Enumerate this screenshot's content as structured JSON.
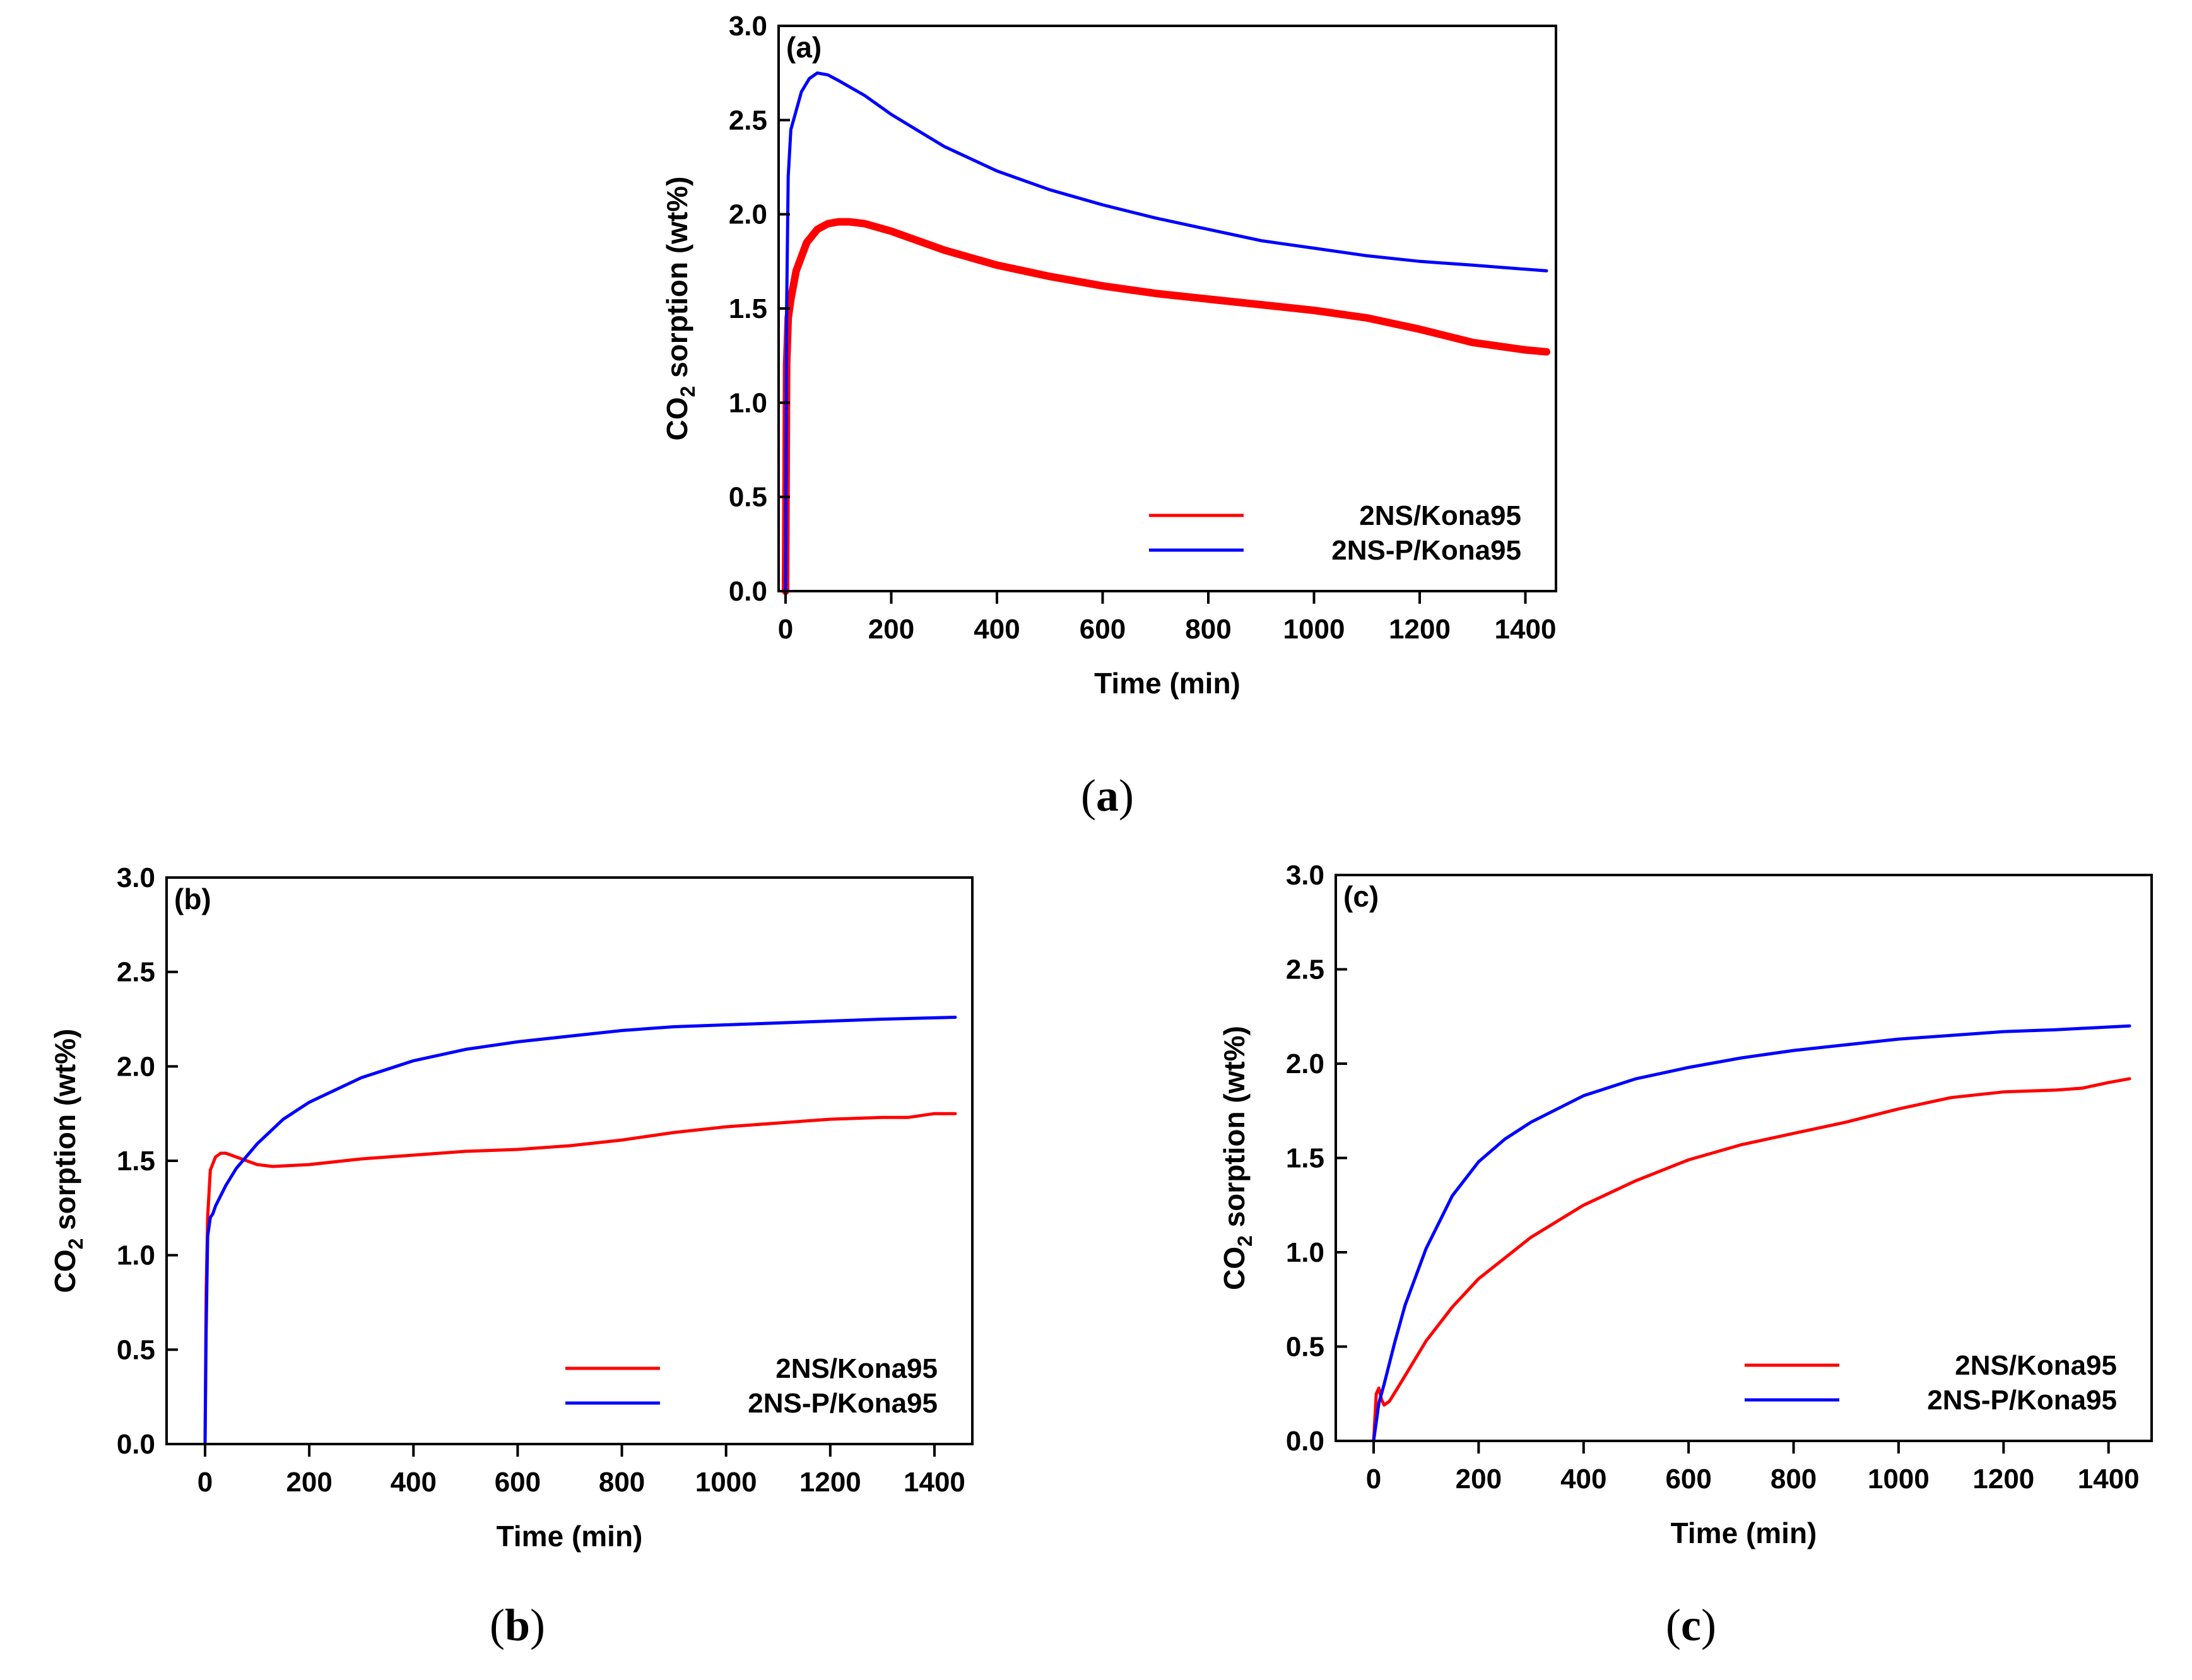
{
  "chart_data": [
    {
      "id": "a",
      "type": "line",
      "panel_tag": "(a)",
      "caption_letter": "a",
      "xlabel": "Time (min)",
      "ylabel_main": "CO",
      "ylabel_sub": "2",
      "ylabel_rest": " sorption (wt%)",
      "xlim": [
        0,
        1440
      ],
      "ylim": [
        0,
        3.0
      ],
      "xticks": [
        "0",
        "200",
        "400",
        "600",
        "800",
        "1000",
        "1200",
        "1400"
      ],
      "yticks": [
        "0.0",
        "0.5",
        "1.0",
        "1.5",
        "2.0",
        "2.5",
        "3.0"
      ],
      "legend_position": "bottom-right",
      "series": [
        {
          "name": "2NS/Kona95",
          "color": "#ff0000",
          "thick": true,
          "x": [
            0,
            2,
            5,
            10,
            20,
            40,
            60,
            80,
            100,
            120,
            150,
            200,
            300,
            400,
            500,
            600,
            700,
            800,
            900,
            1000,
            1100,
            1200,
            1300,
            1400,
            1440
          ],
          "y": [
            0,
            1.2,
            1.45,
            1.55,
            1.7,
            1.85,
            1.92,
            1.95,
            1.96,
            1.96,
            1.95,
            1.91,
            1.81,
            1.73,
            1.67,
            1.62,
            1.58,
            1.55,
            1.52,
            1.49,
            1.45,
            1.39,
            1.32,
            1.28,
            1.27
          ]
        },
        {
          "name": "2NS-P/Kona95",
          "color": "#0000ff",
          "thick": false,
          "x": [
            0,
            2,
            5,
            10,
            20,
            30,
            45,
            60,
            80,
            100,
            150,
            200,
            300,
            400,
            500,
            600,
            700,
            800,
            900,
            1000,
            1100,
            1200,
            1300,
            1440
          ],
          "y": [
            0,
            1.5,
            2.2,
            2.45,
            2.55,
            2.65,
            2.72,
            2.75,
            2.74,
            2.71,
            2.63,
            2.53,
            2.36,
            2.23,
            2.13,
            2.05,
            1.98,
            1.92,
            1.86,
            1.82,
            1.78,
            1.75,
            1.73,
            1.7
          ]
        }
      ]
    },
    {
      "id": "b",
      "type": "line",
      "panel_tag": "(b)",
      "caption_letter": "b",
      "xlabel": "Time (min)",
      "ylabel_main": "CO",
      "ylabel_sub": "2",
      "ylabel_rest": " sorption (wt%)",
      "xlim": [
        0,
        1440
      ],
      "ylim": [
        0,
        3.0
      ],
      "xticks": [
        "0",
        "200",
        "400",
        "600",
        "800",
        "1000",
        "1200",
        "1400"
      ],
      "yticks": [
        "0.0",
        "0.5",
        "1.0",
        "1.5",
        "2.0",
        "2.5",
        "3.0"
      ],
      "legend_position": "bottom-right",
      "series": [
        {
          "name": "2NS/Kona95",
          "color": "#ff0000",
          "thick": false,
          "x": [
            0,
            2,
            5,
            10,
            20,
            30,
            40,
            60,
            80,
            100,
            130,
            200,
            300,
            400,
            500,
            600,
            700,
            800,
            900,
            1000,
            1100,
            1200,
            1300,
            1350,
            1400,
            1440
          ],
          "y": [
            0,
            0.8,
            1.2,
            1.45,
            1.52,
            1.54,
            1.54,
            1.52,
            1.5,
            1.48,
            1.47,
            1.48,
            1.51,
            1.53,
            1.55,
            1.56,
            1.58,
            1.61,
            1.65,
            1.68,
            1.7,
            1.72,
            1.73,
            1.73,
            1.75,
            1.75
          ]
        },
        {
          "name": "2NS-P/Kona95",
          "color": "#0000ff",
          "thick": false,
          "x": [
            0,
            2,
            5,
            10,
            15,
            20,
            40,
            60,
            100,
            150,
            200,
            300,
            400,
            500,
            600,
            700,
            800,
            900,
            1000,
            1100,
            1200,
            1300,
            1440
          ],
          "y": [
            0,
            0.6,
            1.1,
            1.2,
            1.22,
            1.26,
            1.37,
            1.46,
            1.59,
            1.72,
            1.81,
            1.94,
            2.03,
            2.09,
            2.13,
            2.16,
            2.19,
            2.21,
            2.22,
            2.23,
            2.24,
            2.25,
            2.26
          ]
        }
      ]
    },
    {
      "id": "c",
      "type": "line",
      "panel_tag": "(c)",
      "caption_letter": "c",
      "xlabel": "Time (min)",
      "ylabel_main": "CO",
      "ylabel_sub": "2",
      "ylabel_rest": " sorption (wt%)",
      "xlim": [
        0,
        1440
      ],
      "ylim": [
        0,
        3.0
      ],
      "xticks": [
        "0",
        "200",
        "400",
        "600",
        "800",
        "1000",
        "1200",
        "1400"
      ],
      "yticks": [
        "0.0",
        "0.5",
        "1.0",
        "1.5",
        "2.0",
        "2.5",
        "3.0"
      ],
      "legend_position": "bottom-right",
      "series": [
        {
          "name": "2NS/Kona95",
          "color": "#ff0000",
          "thick": false,
          "x": [
            0,
            2,
            5,
            10,
            15,
            20,
            30,
            50,
            100,
            150,
            200,
            300,
            400,
            500,
            600,
            700,
            800,
            900,
            1000,
            1100,
            1200,
            1300,
            1350,
            1400,
            1440
          ],
          "y": [
            0,
            0.1,
            0.25,
            0.28,
            0.22,
            0.19,
            0.21,
            0.3,
            0.53,
            0.71,
            0.86,
            1.08,
            1.25,
            1.38,
            1.49,
            1.57,
            1.63,
            1.69,
            1.76,
            1.82,
            1.85,
            1.86,
            1.87,
            1.9,
            1.92
          ]
        },
        {
          "name": "2NS-P/Kona95",
          "color": "#0000ff",
          "thick": false,
          "x": [
            0,
            5,
            10,
            20,
            40,
            60,
            100,
            150,
            200,
            250,
            300,
            400,
            500,
            600,
            700,
            800,
            900,
            1000,
            1100,
            1200,
            1300,
            1440
          ],
          "y": [
            0,
            0.1,
            0.2,
            0.3,
            0.52,
            0.72,
            1.02,
            1.3,
            1.48,
            1.6,
            1.69,
            1.83,
            1.92,
            1.98,
            2.03,
            2.07,
            2.1,
            2.13,
            2.15,
            2.17,
            2.18,
            2.2
          ]
        }
      ]
    }
  ]
}
